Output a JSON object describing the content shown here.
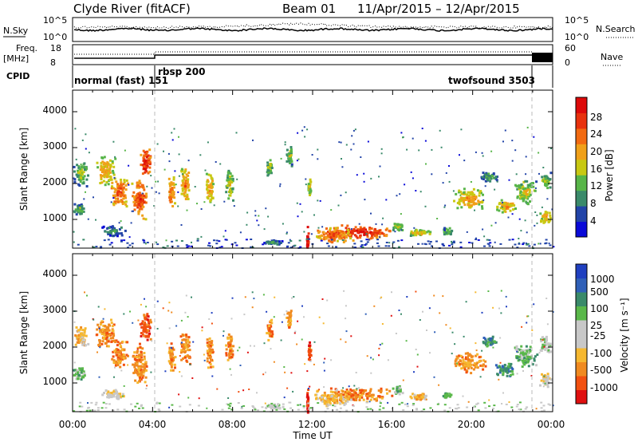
{
  "header": {
    "station": "Clyde River (fitACF)",
    "beam": "Beam 01",
    "daterange": "11/Apr/2015 – 12/Apr/2015"
  },
  "noise_panel": {
    "left_label": "N.Sky",
    "right_label": "N.Search",
    "left_ticks": [
      "10^5",
      "10^0"
    ],
    "right_ticks": [
      "10^5",
      "10^0"
    ]
  },
  "freq_panel": {
    "left_label": "Freq.",
    "left_units": "[MHz]",
    "right_label": "Nave",
    "left_ticks": [
      "18",
      "8"
    ],
    "right_ticks": [
      "60",
      "0"
    ]
  },
  "cpid": {
    "label": "CPID",
    "segments": [
      "normal (fast) 151",
      "rbsp 200",
      "twofsound 3503"
    ]
  },
  "colors": {
    "power_scale": [
      "#0a0ad8",
      "#2244a8",
      "#3a8a6a",
      "#57b548",
      "#c8c812",
      "#f0a019",
      "#f26a11",
      "#e8320e",
      "#dd0a0a"
    ],
    "velocity_scale": [
      "#e01010",
      "#f25010",
      "#f08a20",
      "#f6b830",
      "#c8c8c8",
      "#c8c8c8",
      "#5ab84a",
      "#3a8a6a",
      "#3060b8",
      "#2040c0"
    ]
  },
  "chart_data": [
    {
      "type": "heatmap",
      "name": "power",
      "ylabel": "Slant Range [km]",
      "yticks": [
        "1000",
        "2000",
        "3000",
        "4000"
      ],
      "ylim": [
        200,
        4600
      ],
      "xlim": [
        0,
        24
      ],
      "colorbar_label": "Power [dB]",
      "colorbar_ticks": [
        "4",
        "8",
        "12",
        "16",
        "20",
        "24",
        "28"
      ],
      "colorbar_range": [
        0,
        32
      ]
    },
    {
      "type": "heatmap",
      "name": "velocity",
      "ylabel": "Slant Range [km]",
      "yticks": [
        "1000",
        "2000",
        "3000",
        "4000"
      ],
      "ylim": [
        200,
        4600
      ],
      "xlim": [
        0,
        24
      ],
      "colorbar_label": "Velocity [m s⁻¹]",
      "colorbar_ticks": [
        "-1000",
        "-500",
        "-100",
        "-25",
        "25",
        "100",
        "500",
        "1000"
      ]
    }
  ],
  "time_axis": {
    "xlabel": "Time UT",
    "ticks": [
      "00:00",
      "04:00",
      "08:00",
      "12:00",
      "16:00",
      "20:00",
      "00:00"
    ]
  }
}
